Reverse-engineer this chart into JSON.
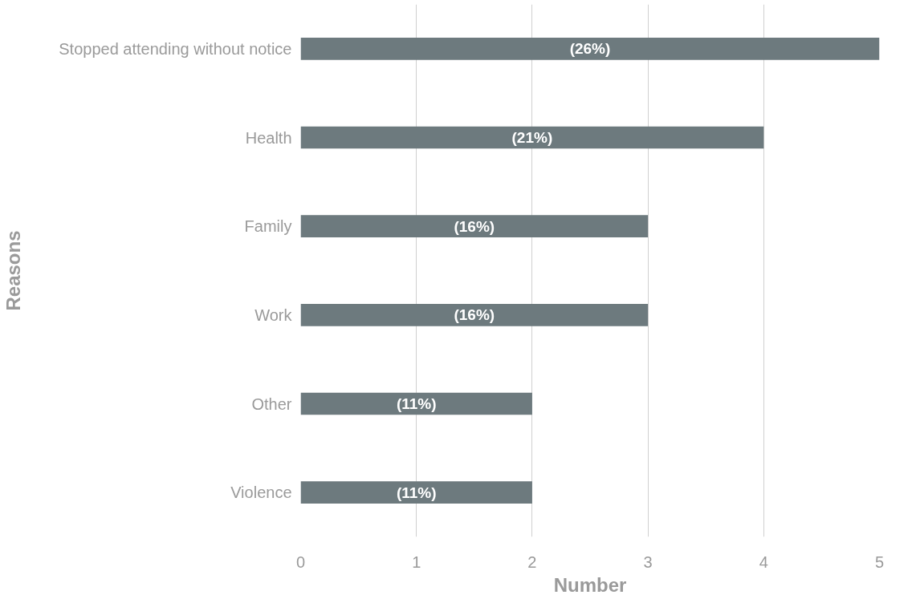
{
  "chart_data": {
    "type": "bar",
    "orientation": "horizontal",
    "xlabel": "Number",
    "ylabel": "Reasons",
    "categories": [
      "Stopped attending without notice",
      "Health",
      "Family",
      "Work",
      "Other",
      "Violence"
    ],
    "values": [
      5,
      4,
      3,
      3,
      2,
      2
    ],
    "annotations": [
      "(26%)",
      "(21%)",
      "(16%)",
      "(16%)",
      "(11%)",
      "(11%)"
    ],
    "color": "#6d7a7e",
    "xlim": [
      0,
      5
    ],
    "xticks": [
      0,
      1,
      2,
      3,
      4,
      5
    ],
    "grid": "x"
  }
}
